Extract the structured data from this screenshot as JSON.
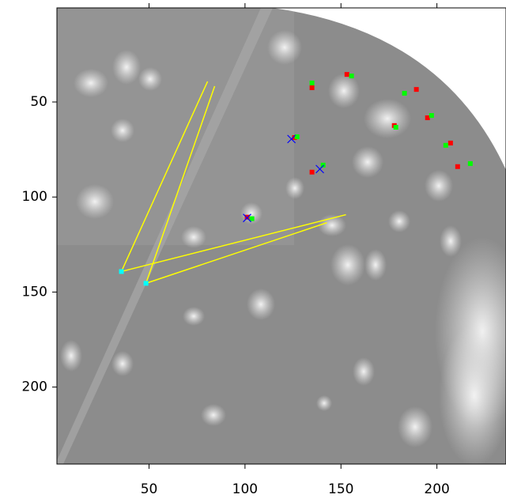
{
  "chart_data": {
    "type": "image",
    "xlim": [
      2,
      236
    ],
    "ylim": [
      240.5,
      0.5
    ],
    "xticks": [
      50,
      100,
      150,
      200
    ],
    "yticks": [
      50,
      100,
      150,
      200
    ],
    "series": [
      {
        "color": "#ffff00",
        "style": "line",
        "x": [
          35.6,
          80.5,
          null,
          48.4,
          84.2,
          null,
          35.6,
          152.6,
          null,
          48.4,
          142.7
        ],
        "values": [
          139.2,
          39.2,
          null,
          145.4,
          41.7,
          null,
          139.2,
          109.3,
          null,
          145.4,
          113.5
        ]
      },
      {
        "color": "#ff0000",
        "style": "point",
        "x": [
          134.9,
          153.1,
          189.3,
          195.1,
          177.8,
          207.1,
          210.8,
          134.9,
          125.8,
          101.1
        ],
        "values": [
          42.5,
          35.5,
          43.4,
          58.3,
          62.4,
          71.6,
          84.0,
          86.9,
          68.7,
          110.6
        ]
      },
      {
        "color": "#00ff00",
        "style": "point",
        "x": [
          134.9,
          155.5,
          183.1,
          197.2,
          178.6,
          204.6,
          217.4,
          140.7,
          127.1,
          103.6
        ],
        "values": [
          40.0,
          36.3,
          45.4,
          57.1,
          63.3,
          72.8,
          82.4,
          83.2,
          68.3,
          111.4
        ]
      },
      {
        "color": "#0000ff",
        "style": "cross",
        "x": [
          124.2,
          139.0,
          101.1
        ],
        "values": [
          69.5,
          85.3,
          111.0
        ]
      },
      {
        "color": "#00ffff",
        "style": "point",
        "x": [
          35.6,
          48.4
        ],
        "values": [
          139.2,
          145.4
        ]
      }
    ]
  }
}
